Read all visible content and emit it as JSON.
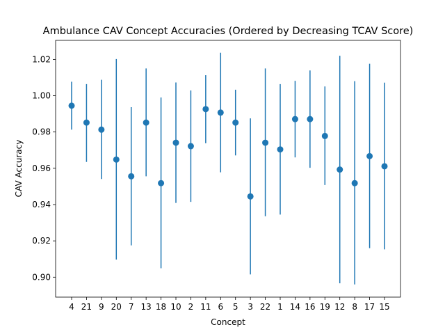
{
  "chart_data": {
    "type": "scatter",
    "title": "Ambulance CAV Concept Accuracies (Ordered by Decreasing TCAV Score)",
    "xlabel": "Concept",
    "ylabel": "CAV Accuracy",
    "ylim": [
      0.889,
      1.0305
    ],
    "yticks": [
      "0.90",
      "0.92",
      "0.94",
      "0.96",
      "0.98",
      "1.00",
      "1.02"
    ],
    "grid": false,
    "color": "#1f77b4",
    "categories": [
      "4",
      "21",
      "9",
      "20",
      "7",
      "13",
      "18",
      "10",
      "2",
      "11",
      "6",
      "5",
      "3",
      "22",
      "1",
      "14",
      "16",
      "19",
      "12",
      "8",
      "17",
      "15"
    ],
    "values": [
      0.9945,
      0.9852,
      0.9813,
      0.9648,
      0.9556,
      0.9852,
      0.9518,
      0.9741,
      0.9722,
      0.9926,
      0.9907,
      0.9852,
      0.9445,
      0.9741,
      0.9704,
      0.9871,
      0.9871,
      0.9778,
      0.9593,
      0.9518,
      0.9667,
      0.9611
    ],
    "err_low": [
      0.9813,
      0.9635,
      0.9541,
      0.9097,
      0.9175,
      0.9556,
      0.9049,
      0.9409,
      0.9415,
      0.9738,
      0.9578,
      0.9671,
      0.9015,
      0.9336,
      0.9345,
      0.966,
      0.9603,
      0.9508,
      0.8966,
      0.896,
      0.916,
      0.9153
    ],
    "err_high": [
      1.0077,
      1.0064,
      1.0088,
      1.0202,
      0.9937,
      1.015,
      0.999,
      1.0073,
      1.0029,
      1.0113,
      1.0237,
      1.0033,
      0.9875,
      1.015,
      1.0064,
      1.0082,
      1.0139,
      1.0051,
      1.022,
      1.008,
      1.0176,
      1.0072
    ]
  }
}
